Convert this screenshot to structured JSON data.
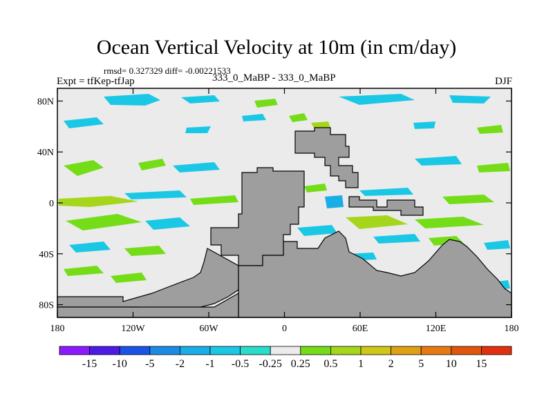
{
  "title": "Ocean Vertical Velocity at 10m (in cm/day)",
  "stats": "rmsd= 0.327329 diff= -0.00221533",
  "left_label": "Expt = tfKep-tfJap",
  "center_label": "333_0_MaBP - 333_0_MaBP",
  "right_label": "DJF",
  "chart_data": {
    "type": "heatmap",
    "x_ticks": [
      "180",
      "120W",
      "60W",
      "0",
      "60E",
      "120E",
      "180"
    ],
    "y_ticks": [
      "80N",
      "40N",
      "0",
      "40S",
      "80S"
    ],
    "xlim": [
      -180,
      180
    ],
    "ylim": [
      -90,
      90
    ],
    "colorbar": {
      "labels": [
        "-15",
        "-10",
        "-5",
        "-2",
        "-1",
        "-0.5",
        "-0.25",
        "0.25",
        "0.5",
        "1",
        "2",
        "5",
        "10",
        "15"
      ],
      "colors": [
        "#8c1aff",
        "#4d1ae6",
        "#1a53e6",
        "#1a8ce6",
        "#1aaee6",
        "#1ac8e6",
        "#29dccb",
        "#ebebeb",
        "#74dd17",
        "#a6d61c",
        "#cfc715",
        "#e0a015",
        "#e67a12",
        "#e0560f",
        "#e0300f"
      ]
    },
    "land_color": "#9e9e9e",
    "background_color": "#ebebeb"
  }
}
